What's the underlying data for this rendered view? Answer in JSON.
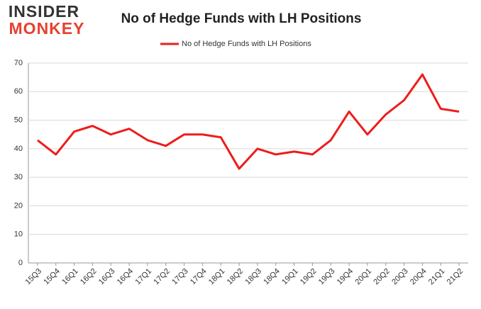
{
  "logo": {
    "line1": "INSIDER",
    "line2": "MONKEY"
  },
  "chart_data": {
    "type": "line",
    "title": "No of Hedge Funds with LH Positions",
    "categories": [
      "15Q3",
      "15Q4",
      "16Q1",
      "16Q2",
      "16Q3",
      "16Q4",
      "17Q1",
      "17Q2",
      "17Q3",
      "17Q4",
      "18Q1",
      "18Q2",
      "18Q3",
      "18Q4",
      "19Q1",
      "19Q2",
      "19Q3",
      "19Q4",
      "20Q1",
      "20Q2",
      "20Q3",
      "20Q4",
      "21Q1",
      "21Q2"
    ],
    "series": [
      {
        "name": "No of Hedge Funds with LH Positions",
        "color": "#ee1c1c",
        "values": [
          43,
          38,
          46,
          48,
          45,
          47,
          43,
          41,
          45,
          45,
          44,
          33,
          40,
          38,
          39,
          38,
          43,
          53,
          45,
          52,
          57,
          66,
          54,
          53
        ]
      }
    ],
    "ylim": [
      0,
      70
    ],
    "yticks": [
      0,
      10,
      20,
      30,
      40,
      50,
      60,
      70
    ],
    "grid": true,
    "legend": "top"
  }
}
